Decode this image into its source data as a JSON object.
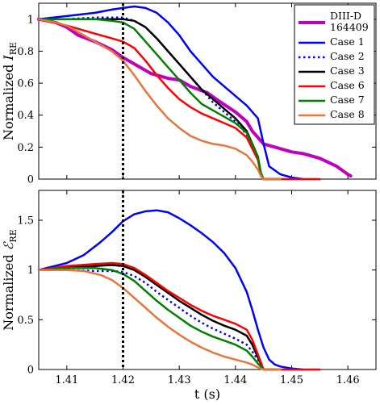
{
  "chart_data": [
    {
      "type": "line",
      "ylabel": "Normalized I_RE",
      "xlim": [
        1.405,
        1.465
      ],
      "ylim": [
        0,
        1.1
      ],
      "xticks": [],
      "yticks": [
        0,
        0.2,
        0.4,
        0.6,
        0.8,
        1
      ],
      "ytick_labels": [
        "0",
        "0.2",
        "0.4",
        "0.6",
        "0.8",
        "1"
      ],
      "vline_x": 1.42,
      "legend_position": "top-right",
      "series": [
        {
          "name": "DIII-D 164409",
          "color": "#bf00bf",
          "style": "solid",
          "width": 4,
          "x": [
            1.405,
            1.408,
            1.41,
            1.412,
            1.415,
            1.418,
            1.42,
            1.422,
            1.425,
            1.428,
            1.43,
            1.432,
            1.435,
            1.437,
            1.44,
            1.442,
            1.443,
            1.445,
            1.448,
            1.45,
            1.452,
            1.455,
            1.458,
            1.46,
            1.4605
          ],
          "y": [
            1.0,
            0.98,
            0.95,
            0.9,
            0.86,
            0.81,
            0.76,
            0.72,
            0.66,
            0.63,
            0.62,
            0.58,
            0.54,
            0.49,
            0.42,
            0.36,
            0.3,
            0.22,
            0.19,
            0.17,
            0.16,
            0.13,
            0.08,
            0.03,
            0.02
          ]
        },
        {
          "name": "Case 1",
          "color": "#0000ff",
          "style": "solid",
          "width": 2.5,
          "x": [
            1.405,
            1.41,
            1.415,
            1.418,
            1.42,
            1.422,
            1.424,
            1.426,
            1.428,
            1.43,
            1.432,
            1.434,
            1.436,
            1.438,
            1.44,
            1.442,
            1.444,
            1.445,
            1.446,
            1.448,
            1.45,
            1.452
          ],
          "y": [
            1.0,
            1.02,
            1.04,
            1.06,
            1.07,
            1.08,
            1.07,
            1.04,
            0.98,
            0.9,
            0.8,
            0.72,
            0.64,
            0.58,
            0.52,
            0.46,
            0.38,
            0.22,
            0.08,
            0.03,
            0.01,
            0.0
          ]
        },
        {
          "name": "Case 2",
          "color": "#0000ff",
          "style": "dotted",
          "width": 2.5,
          "x": [
            1.405,
            1.41,
            1.415,
            1.418,
            1.42,
            1.422,
            1.424,
            1.426,
            1.428,
            1.43,
            1.432,
            1.434,
            1.436,
            1.438,
            1.44,
            1.442,
            1.444,
            1.4445,
            1.445,
            1.447
          ],
          "y": [
            1.0,
            1.0,
            1.01,
            1.01,
            1.01,
            0.99,
            0.95,
            0.88,
            0.8,
            0.72,
            0.64,
            0.56,
            0.48,
            0.42,
            0.36,
            0.28,
            0.14,
            0.04,
            0.0,
            0.0
          ]
        },
        {
          "name": "Case 3",
          "color": "#000000",
          "style": "solid",
          "width": 2.5,
          "x": [
            1.405,
            1.41,
            1.415,
            1.418,
            1.42,
            1.422,
            1.424,
            1.426,
            1.428,
            1.43,
            1.432,
            1.434,
            1.436,
            1.438,
            1.44,
            1.442,
            1.444,
            1.4445,
            1.445,
            1.448
          ],
          "y": [
            1.0,
            1.0,
            1.0,
            1.0,
            1.0,
            0.99,
            0.95,
            0.88,
            0.8,
            0.72,
            0.64,
            0.56,
            0.5,
            0.44,
            0.38,
            0.3,
            0.14,
            0.04,
            0.0,
            0.0
          ]
        },
        {
          "name": "Case 6",
          "color": "#ff0000",
          "style": "solid",
          "width": 2.5,
          "x": [
            1.405,
            1.41,
            1.415,
            1.418,
            1.42,
            1.422,
            1.424,
            1.426,
            1.428,
            1.43,
            1.432,
            1.434,
            1.436,
            1.438,
            1.44,
            1.442,
            1.444,
            1.4445,
            1.445,
            1.45,
            1.455
          ],
          "y": [
            1.0,
            0.96,
            0.91,
            0.88,
            0.86,
            0.82,
            0.74,
            0.65,
            0.57,
            0.5,
            0.45,
            0.41,
            0.38,
            0.35,
            0.32,
            0.26,
            0.12,
            0.03,
            0.0,
            0.0,
            0.0
          ]
        },
        {
          "name": "Case 7",
          "color": "#008000",
          "style": "solid",
          "width": 2.5,
          "x": [
            1.405,
            1.41,
            1.415,
            1.418,
            1.42,
            1.422,
            1.424,
            1.426,
            1.428,
            1.43,
            1.432,
            1.434,
            1.436,
            1.438,
            1.44,
            1.442,
            1.444,
            1.4445,
            1.445,
            1.448
          ],
          "y": [
            1.0,
            1.0,
            1.0,
            0.99,
            0.98,
            0.94,
            0.86,
            0.78,
            0.7,
            0.62,
            0.54,
            0.47,
            0.43,
            0.39,
            0.35,
            0.29,
            0.14,
            0.04,
            0.0,
            0.0
          ]
        },
        {
          "name": "Case 8",
          "color": "#e8753a",
          "style": "solid",
          "width": 2.5,
          "x": [
            1.405,
            1.408,
            1.41,
            1.412,
            1.415,
            1.418,
            1.42,
            1.422,
            1.424,
            1.426,
            1.428,
            1.43,
            1.432,
            1.434,
            1.436,
            1.438,
            1.44,
            1.442,
            1.443,
            1.444,
            1.4445,
            1.445,
            1.448
          ],
          "y": [
            1.0,
            0.98,
            0.96,
            0.92,
            0.86,
            0.8,
            0.74,
            0.65,
            0.55,
            0.46,
            0.38,
            0.32,
            0.27,
            0.24,
            0.22,
            0.21,
            0.19,
            0.15,
            0.11,
            0.06,
            0.02,
            0.0,
            0.0
          ]
        }
      ]
    },
    {
      "type": "line",
      "xlabel": "t (s)",
      "ylabel": "Normalized E_RE",
      "xlim": [
        1.405,
        1.465
      ],
      "ylim": [
        0,
        1.8
      ],
      "xticks": [
        1.41,
        1.42,
        1.43,
        1.44,
        1.45,
        1.46
      ],
      "xtick_labels": [
        "1.41",
        "1.42",
        "1.43",
        "1.44",
        "1.45",
        "1.46"
      ],
      "yticks": [
        0,
        0.5,
        1,
        1.5
      ],
      "ytick_labels": [
        "0",
        "0.5",
        "1",
        "1.5"
      ],
      "vline_x": 1.42,
      "series": [
        {
          "name": "Case 1",
          "color": "#0000ff",
          "style": "solid",
          "width": 2.5,
          "x": [
            1.405,
            1.41,
            1.413,
            1.416,
            1.418,
            1.42,
            1.422,
            1.424,
            1.426,
            1.428,
            1.43,
            1.432,
            1.434,
            1.436,
            1.438,
            1.44,
            1.442,
            1.443,
            1.444,
            1.445,
            1.446,
            1.447,
            1.448,
            1.45,
            1.452
          ],
          "y": [
            1.0,
            1.07,
            1.15,
            1.28,
            1.38,
            1.49,
            1.56,
            1.59,
            1.6,
            1.58,
            1.52,
            1.45,
            1.37,
            1.28,
            1.17,
            1.02,
            0.78,
            0.6,
            0.4,
            0.22,
            0.1,
            0.05,
            0.03,
            0.01,
            0.0
          ]
        },
        {
          "name": "Case 2",
          "color": "#0000ff",
          "style": "dotted",
          "width": 2.5,
          "x": [
            1.405,
            1.41,
            1.415,
            1.418,
            1.42,
            1.422,
            1.424,
            1.426,
            1.428,
            1.43,
            1.432,
            1.434,
            1.436,
            1.438,
            1.44,
            1.442,
            1.443,
            1.444,
            1.445,
            1.447
          ],
          "y": [
            1.0,
            1.0,
            0.99,
            0.99,
            0.98,
            0.94,
            0.87,
            0.78,
            0.7,
            0.62,
            0.54,
            0.47,
            0.41,
            0.36,
            0.31,
            0.25,
            0.18,
            0.1,
            0.0,
            0.0
          ]
        },
        {
          "name": "Case 3",
          "color": "#000000",
          "style": "solid",
          "width": 2.5,
          "x": [
            1.405,
            1.41,
            1.415,
            1.418,
            1.42,
            1.422,
            1.424,
            1.426,
            1.428,
            1.43,
            1.432,
            1.434,
            1.436,
            1.438,
            1.44,
            1.442,
            1.443,
            1.444,
            1.445,
            1.447
          ],
          "y": [
            1.0,
            1.03,
            1.04,
            1.05,
            1.04,
            1.0,
            0.93,
            0.85,
            0.77,
            0.69,
            0.62,
            0.55,
            0.49,
            0.44,
            0.4,
            0.34,
            0.25,
            0.12,
            0.0,
            0.0
          ]
        },
        {
          "name": "Case 6",
          "color": "#ff0000",
          "style": "solid",
          "width": 2.5,
          "x": [
            1.405,
            1.41,
            1.415,
            1.418,
            1.42,
            1.422,
            1.424,
            1.426,
            1.428,
            1.43,
            1.432,
            1.434,
            1.436,
            1.438,
            1.44,
            1.442,
            1.443,
            1.444,
            1.445,
            1.45,
            1.455
          ],
          "y": [
            1.0,
            1.04,
            1.06,
            1.07,
            1.06,
            1.02,
            0.95,
            0.87,
            0.79,
            0.72,
            0.65,
            0.59,
            0.54,
            0.5,
            0.46,
            0.4,
            0.3,
            0.15,
            0.0,
            0.0,
            0.0
          ]
        },
        {
          "name": "Case 7",
          "color": "#008000",
          "style": "solid",
          "width": 2.5,
          "x": [
            1.405,
            1.41,
            1.415,
            1.418,
            1.42,
            1.422,
            1.424,
            1.426,
            1.428,
            1.43,
            1.432,
            1.434,
            1.436,
            1.438,
            1.44,
            1.442,
            1.443,
            1.444,
            1.445,
            1.448
          ],
          "y": [
            1.0,
            1.02,
            1.02,
            1.0,
            0.96,
            0.89,
            0.79,
            0.69,
            0.6,
            0.52,
            0.44,
            0.38,
            0.33,
            0.29,
            0.25,
            0.19,
            0.13,
            0.06,
            0.0,
            0.0
          ]
        },
        {
          "name": "Case 8",
          "color": "#e8753a",
          "style": "solid",
          "width": 2.5,
          "x": [
            1.405,
            1.41,
            1.413,
            1.416,
            1.418,
            1.42,
            1.422,
            1.424,
            1.426,
            1.428,
            1.43,
            1.432,
            1.434,
            1.436,
            1.438,
            1.44,
            1.442,
            1.443,
            1.444,
            1.445,
            1.448
          ],
          "y": [
            1.0,
            1.0,
            0.99,
            0.95,
            0.9,
            0.82,
            0.72,
            0.62,
            0.52,
            0.43,
            0.35,
            0.28,
            0.22,
            0.17,
            0.13,
            0.1,
            0.07,
            0.05,
            0.02,
            0.0,
            0.0
          ]
        }
      ]
    }
  ],
  "legend": {
    "entries": [
      {
        "label": "DIII-D\n164409",
        "color": "#bf00bf",
        "style": "solid"
      },
      {
        "label": "Case 1",
        "color": "#0000ff",
        "style": "solid"
      },
      {
        "label": "Case 2",
        "color": "#0000ff",
        "style": "dotted"
      },
      {
        "label": "Case 3",
        "color": "#000000",
        "style": "solid"
      },
      {
        "label": "Case 6",
        "color": "#ff0000",
        "style": "solid"
      },
      {
        "label": "Case 7",
        "color": "#008000",
        "style": "solid"
      },
      {
        "label": "Case 8",
        "color": "#e8753a",
        "style": "solid"
      }
    ]
  },
  "labels": {
    "top_ylabel_prefix": "Normalized ",
    "top_ylabel_symbol": "I",
    "top_ylabel_sub": "RE",
    "bottom_ylabel_prefix": "Normalized ",
    "bottom_ylabel_symbol": "ℰ",
    "bottom_ylabel_sub": "RE",
    "xlabel": "t (s)"
  }
}
